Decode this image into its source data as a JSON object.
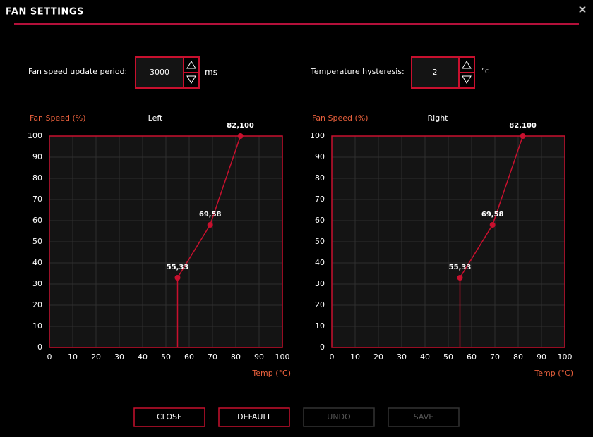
{
  "header": {
    "title": "FAN SETTINGS",
    "close": "×"
  },
  "controls": [
    {
      "label": "Fan speed update period:",
      "value": 3000,
      "unit": "ms"
    },
    {
      "label": "Temperature hysteresis:",
      "value": 2,
      "unit": "°c"
    }
  ],
  "charts": [
    {
      "type": "line",
      "title": "Left",
      "y_label": "Fan Speed (%)",
      "x_label": "Temp (°C)",
      "x": [
        55,
        55,
        69,
        82
      ],
      "values": [
        0,
        33,
        58,
        100
      ],
      "value_labels": [
        null,
        "55,33",
        "69,58",
        "82,100"
      ],
      "color": "#c8102e",
      "xlim": [
        0,
        100
      ],
      "ylim": [
        0,
        100
      ],
      "xticks": [
        0,
        10,
        20,
        30,
        40,
        50,
        60,
        70,
        80,
        90,
        100
      ],
      "yticks": [
        0,
        10,
        20,
        30,
        40,
        50,
        60,
        70,
        80,
        90,
        100
      ],
      "grid": true
    },
    {
      "type": "line",
      "title": "Right",
      "y_label": "Fan Speed (%)",
      "x_label": "Temp (°C)",
      "x": [
        55,
        55,
        69,
        82
      ],
      "values": [
        0,
        33,
        58,
        100
      ],
      "value_labels": [
        null,
        "55,33",
        "69,58",
        "82,100"
      ],
      "color": "#c8102e",
      "xlim": [
        0,
        100
      ],
      "ylim": [
        0,
        100
      ],
      "xticks": [
        0,
        10,
        20,
        30,
        40,
        50,
        60,
        70,
        80,
        90,
        100
      ],
      "yticks": [
        0,
        10,
        20,
        30,
        40,
        50,
        60,
        70,
        80,
        90,
        100
      ],
      "grid": true
    }
  ],
  "buttons": [
    {
      "label": "CLOSE",
      "enabled": true
    },
    {
      "label": "DEFAULT",
      "enabled": true
    },
    {
      "label": "UNDO",
      "enabled": false
    },
    {
      "label": "SAVE",
      "enabled": false
    }
  ]
}
